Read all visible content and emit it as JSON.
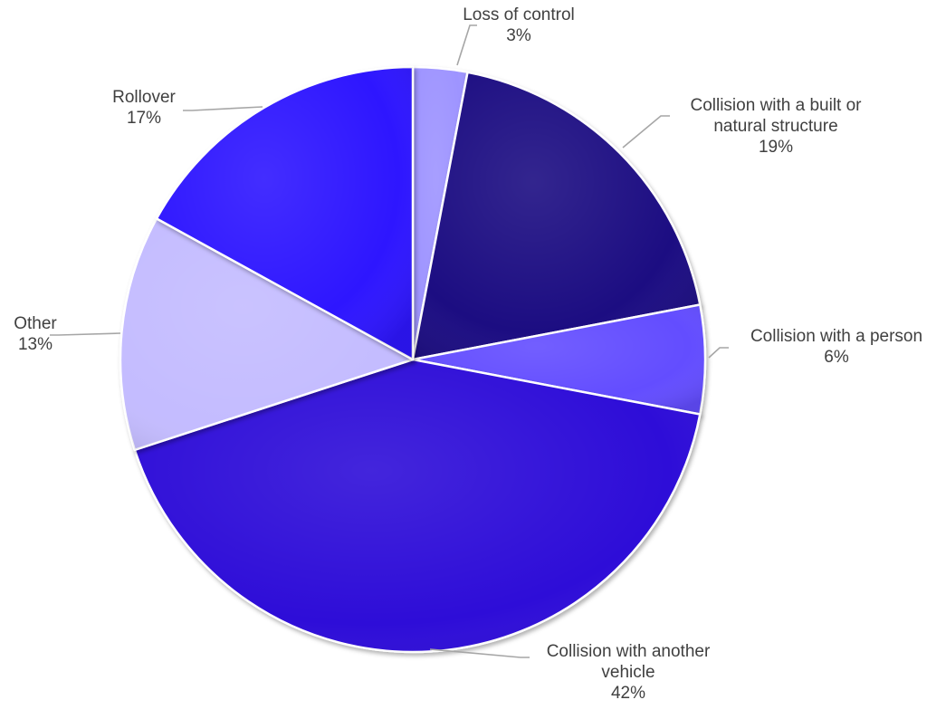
{
  "chart_data": {
    "type": "pie",
    "title": "",
    "slices": [
      {
        "category": "Loss of control",
        "value": 3,
        "label": "3%",
        "color": "#9e94ff"
      },
      {
        "category": "Collision with a built or natural structure",
        "category_lines": [
          "Collision with a built or",
          "natural structure"
        ],
        "value": 19,
        "label": "19%",
        "color": "#1f0a82"
      },
      {
        "category": "Collision with a person",
        "value": 6,
        "label": "6%",
        "color": "#644dff"
      },
      {
        "category": "Collision with another vehicle",
        "category_lines": [
          "Collision with another",
          "vehicle"
        ],
        "value": 42,
        "label": "42%",
        "color": "#2d0cd8"
      },
      {
        "category": "Other",
        "value": 13,
        "label": "13%",
        "color": "#c4bcff"
      },
      {
        "category": "Rollover",
        "value": 17,
        "label": "17%",
        "color": "#2d14ff"
      }
    ],
    "legend": "none",
    "data_labels": "outside-with-leader-lines"
  }
}
